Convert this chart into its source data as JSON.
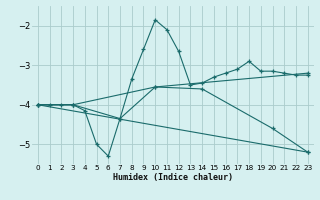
{
  "xlabel": "Humidex (Indice chaleur)",
  "bg_color": "#d6f0f0",
  "grid_color": "#aacccc",
  "line_color": "#1a6b6b",
  "xlim": [
    -0.5,
    23.5
  ],
  "ylim": [
    -5.5,
    -1.5
  ],
  "yticks": [
    -5,
    -4,
    -3,
    -2
  ],
  "xticks": [
    0,
    1,
    2,
    3,
    4,
    5,
    6,
    7,
    8,
    9,
    10,
    11,
    12,
    13,
    14,
    15,
    16,
    17,
    18,
    19,
    20,
    21,
    22,
    23
  ],
  "lines": [
    {
      "x": [
        0,
        1,
        2,
        3,
        4,
        5,
        6,
        7,
        8,
        9,
        10,
        11,
        12,
        13,
        14,
        15,
        16,
        17,
        18,
        19,
        20,
        21,
        22,
        23
      ],
      "y": [
        -4.0,
        -4.0,
        -4.0,
        -4.0,
        -4.15,
        -5.0,
        -5.3,
        -4.35,
        -3.35,
        -2.6,
        -1.85,
        -2.1,
        -2.65,
        -3.5,
        -3.45,
        -3.3,
        -3.2,
        -3.1,
        -2.9,
        -3.15,
        -3.15,
        -3.2,
        -3.25,
        -3.25
      ]
    },
    {
      "x": [
        0,
        3,
        10,
        23
      ],
      "y": [
        -4.0,
        -4.0,
        -3.55,
        -3.2
      ]
    },
    {
      "x": [
        0,
        3,
        7,
        10,
        14,
        20,
        23
      ],
      "y": [
        -4.0,
        -4.0,
        -4.35,
        -3.55,
        -3.6,
        -4.6,
        -5.2
      ]
    },
    {
      "x": [
        0,
        23
      ],
      "y": [
        -4.0,
        -5.2
      ]
    }
  ]
}
